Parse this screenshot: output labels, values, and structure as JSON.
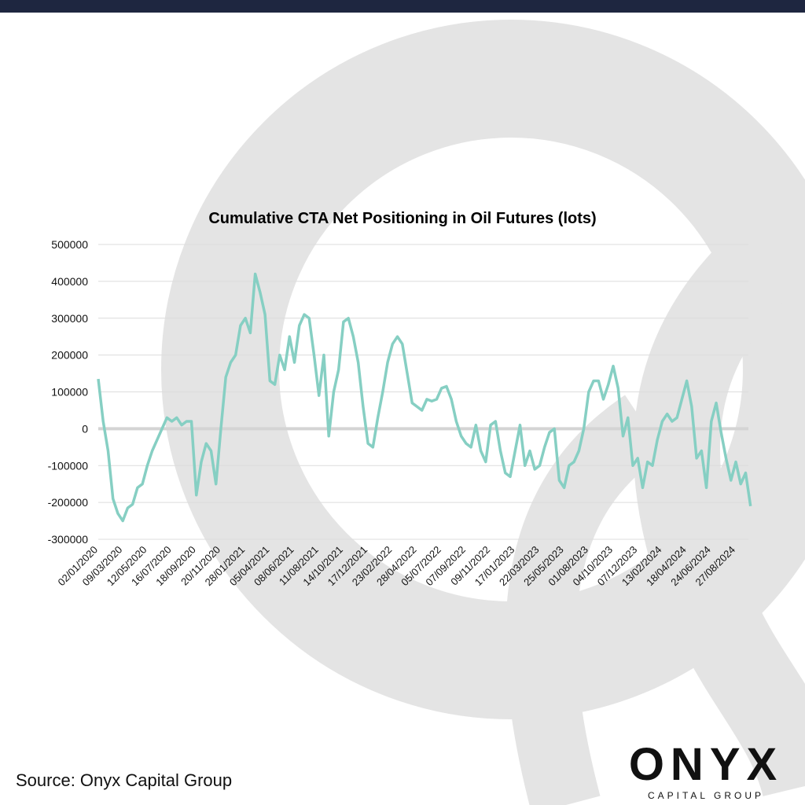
{
  "chart_data": {
    "type": "line",
    "title": "Cumulative CTA Net Positioning in Oil Futures (lots)",
    "categories": [
      "02/01/2020",
      null,
      null,
      null,
      null,
      "09/03/2020",
      null,
      null,
      null,
      null,
      "12/05/2020",
      null,
      null,
      null,
      null,
      "16/07/2020",
      null,
      null,
      null,
      null,
      "18/09/2020",
      null,
      null,
      null,
      null,
      "20/11/2020",
      null,
      null,
      null,
      null,
      "28/01/2021",
      null,
      null,
      null,
      null,
      "05/04/2021",
      null,
      null,
      null,
      null,
      "08/06/2021",
      null,
      null,
      null,
      null,
      "11/08/2021",
      null,
      null,
      null,
      null,
      "14/10/2021",
      null,
      null,
      null,
      null,
      "17/12/2021",
      null,
      null,
      null,
      null,
      "23/02/2022",
      null,
      null,
      null,
      null,
      "28/04/2022",
      null,
      null,
      null,
      null,
      "05/07/2022",
      null,
      null,
      null,
      null,
      "07/09/2022",
      null,
      null,
      null,
      null,
      "09/11/2022",
      null,
      null,
      null,
      null,
      "17/01/2023",
      null,
      null,
      null,
      null,
      "22/03/2023",
      null,
      null,
      null,
      null,
      "25/05/2023",
      null,
      null,
      null,
      null,
      "01/08/2023",
      null,
      null,
      null,
      null,
      "04/10/2023",
      null,
      null,
      null,
      null,
      "07/12/2023",
      null,
      null,
      null,
      null,
      "13/02/2024",
      null,
      null,
      null,
      null,
      "18/04/2024",
      null,
      null,
      null,
      null,
      "24/06/2024",
      null,
      null,
      null,
      null,
      "27/08/2024",
      null,
      null,
      null
    ],
    "series": [
      {
        "name": "Cumulative CTA Net Positioning",
        "color": "#86cfc3",
        "values": [
          135000,
          20000,
          -60000,
          -190000,
          -230000,
          -250000,
          -215000,
          -205000,
          -160000,
          -150000,
          -100000,
          -60000,
          -30000,
          0,
          30000,
          20000,
          30000,
          10000,
          20000,
          20000,
          -180000,
          -90000,
          -40000,
          -60000,
          -150000,
          0,
          140000,
          180000,
          200000,
          280000,
          300000,
          260000,
          420000,
          370000,
          310000,
          130000,
          120000,
          200000,
          160000,
          250000,
          180000,
          280000,
          310000,
          300000,
          200000,
          90000,
          200000,
          -20000,
          100000,
          160000,
          290000,
          300000,
          250000,
          180000,
          60000,
          -40000,
          -50000,
          30000,
          100000,
          180000,
          230000,
          250000,
          230000,
          150000,
          70000,
          60000,
          50000,
          80000,
          75000,
          80000,
          110000,
          115000,
          80000,
          20000,
          -20000,
          -40000,
          -50000,
          10000,
          -60000,
          -90000,
          10000,
          20000,
          -60000,
          -120000,
          -130000,
          -60000,
          10000,
          -100000,
          -60000,
          -110000,
          -100000,
          -50000,
          -10000,
          0,
          -140000,
          -160000,
          -100000,
          -90000,
          -60000,
          0,
          100000,
          130000,
          130000,
          80000,
          120000,
          170000,
          110000,
          -20000,
          30000,
          -100000,
          -80000,
          -160000,
          -90000,
          -100000,
          -30000,
          20000,
          40000,
          20000,
          30000,
          80000,
          130000,
          60000,
          -80000,
          -60000,
          -160000,
          20000,
          70000,
          -10000,
          -80000,
          -140000,
          -90000,
          -150000,
          -120000,
          -210000
        ]
      }
    ],
    "ylim": [
      -300000,
      500000
    ],
    "yticks": [
      -300000,
      -200000,
      -100000,
      0,
      100000,
      200000,
      300000,
      400000,
      500000
    ],
    "grid": true
  },
  "footer": {
    "source": "Source: Onyx Capital Group",
    "logo": "ONYX",
    "logo_sub": "CAPITAL GROUP"
  }
}
